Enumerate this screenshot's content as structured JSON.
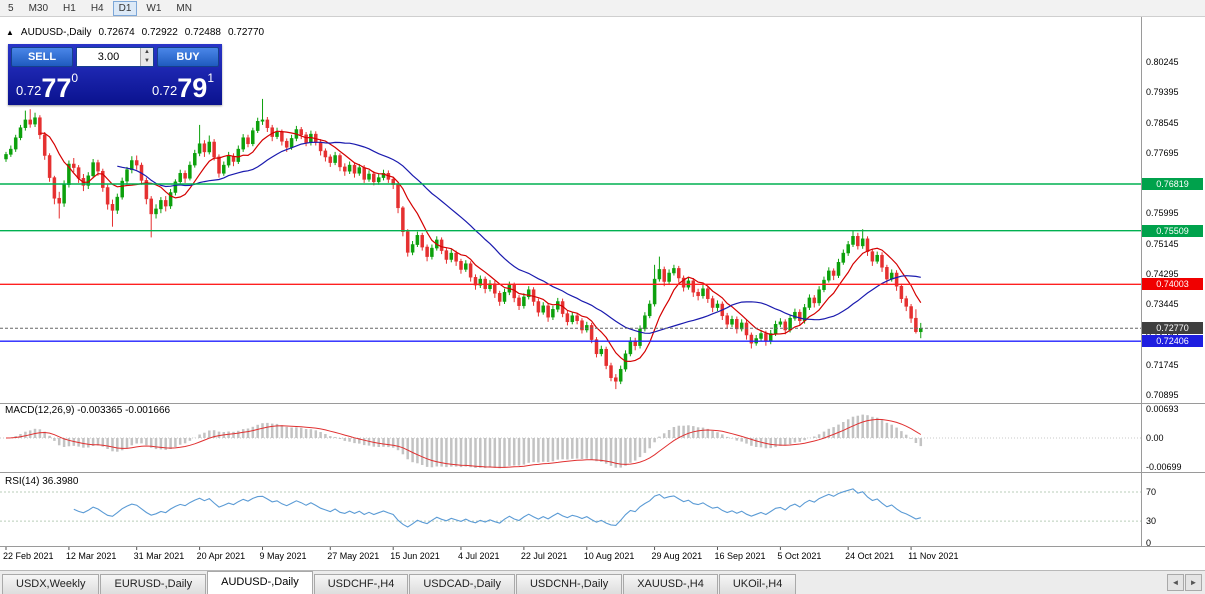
{
  "colors": {
    "up": "#0ca00c",
    "down": "#e53030",
    "ma_fast": "#d40000",
    "ma_slow": "#1a1aae",
    "macd_hist": "#c3c3c3",
    "macd_signal": "#e03030",
    "rsi_line": "#5b9bd5",
    "rsi_levels": "#b9cdb9",
    "current_price_line": "#666666",
    "separator": "#9a9a9a"
  },
  "toolbar": {
    "timeframes": [
      "5",
      "M30",
      "H1",
      "H4",
      "D1",
      "W1",
      "MN"
    ],
    "active": "D1"
  },
  "chart_header": {
    "collapse_icon": "▲",
    "title": "AUDUSD-,Daily",
    "open": "0.72674",
    "high": "0.72922",
    "low": "0.72488",
    "close": "0.72770"
  },
  "trade_panel": {
    "sell_label": "SELL",
    "buy_label": "BUY",
    "volume": "3.00",
    "spin_up": "▲",
    "spin_down": "▼",
    "bid": {
      "prefix": "0.72",
      "pips": "77",
      "point": "0"
    },
    "ask": {
      "prefix": "0.72",
      "pips": "79",
      "point": "1"
    }
  },
  "indicators": {
    "macd": {
      "label": "MACD(12,26,9) -0.003365 -0.001666",
      "ticks": [
        "0.00693",
        "0.00",
        "-0.00699"
      ]
    },
    "rsi": {
      "label": "RSI(14) 36.3980",
      "ticks": [
        "70",
        "30",
        "0"
      ]
    }
  },
  "price_axis": {
    "ticks": [
      "0.80245",
      "0.79395",
      "0.78545",
      "0.77695",
      "0.76845",
      "0.75995",
      "0.75145",
      "0.74295",
      "0.73445",
      "0.72595",
      "0.71745",
      "0.70895"
    ],
    "badges": [
      {
        "value": "0.76819",
        "price": 0.76819,
        "bg": "#00a24c"
      },
      {
        "value": "0.75509",
        "price": 0.75509,
        "bg": "#00a24c"
      },
      {
        "value": "0.74003",
        "price": 0.74003,
        "bg": "#f00000"
      },
      {
        "value": "0.72770",
        "price": 0.7277,
        "bg": "#3f3f3f"
      },
      {
        "value": "0.72406",
        "price": 0.72406,
        "bg": "#1e1ee0"
      }
    ]
  },
  "tabs": {
    "items": [
      "USDX,Weekly",
      "EURUSD-,Daily",
      "AUDUSD-,Daily",
      "USDCHF-,H4",
      "USDCAD-,Daily",
      "USDCNH-,Daily",
      "XAUUSD-,H4",
      "UKOil-,H4"
    ],
    "active_index": 2,
    "scroll_left_icon": "◄",
    "scroll_right_icon": "►"
  },
  "chart_data": {
    "type": "candlestick",
    "symbol": "AUDUSD-",
    "timeframe": "Daily",
    "current_bar": {
      "open": 0.72674,
      "high": 0.72922,
      "low": 0.72488,
      "close": 0.7277
    },
    "current_price": 0.7277,
    "y_range_hint": [
      0.70895,
      0.80245
    ],
    "h_lines": [
      {
        "price": 0.76819,
        "color": "#00b050"
      },
      {
        "price": 0.75509,
        "color": "#00b050"
      },
      {
        "price": 0.74003,
        "color": "#ff2020"
      },
      {
        "price": 0.72406,
        "color": "#2020ff"
      }
    ],
    "x_labels": [
      {
        "text": "22 Feb 2021",
        "bar": 0
      },
      {
        "text": "12 Mar 2021",
        "bar": 13
      },
      {
        "text": "31 Mar 2021",
        "bar": 27
      },
      {
        "text": "20 Apr 2021",
        "bar": 40
      },
      {
        "text": "9 May 2021",
        "bar": 53
      },
      {
        "text": "27 May 2021",
        "bar": 67
      },
      {
        "text": "15 Jun 2021",
        "bar": 80
      },
      {
        "text": "4 Jul 2021",
        "bar": 94
      },
      {
        "text": "22 Jul 2021",
        "bar": 107
      },
      {
        "text": "10 Aug 2021",
        "bar": 120
      },
      {
        "text": "29 Aug 2021",
        "bar": 134
      },
      {
        "text": "16 Sep 2021",
        "bar": 147
      },
      {
        "text": "5 Oct 2021",
        "bar": 160
      },
      {
        "text": "24 Oct 2021",
        "bar": 174
      },
      {
        "text": "11 Nov 2021",
        "bar": 187
      }
    ],
    "candles": [
      [
        0.7752,
        0.7772,
        0.7744,
        0.7765
      ],
      [
        0.7765,
        0.779,
        0.7758,
        0.778
      ],
      [
        0.778,
        0.782,
        0.7772,
        0.7812
      ],
      [
        0.7812,
        0.7848,
        0.7805,
        0.784
      ],
      [
        0.784,
        0.7888,
        0.7832,
        0.7862
      ],
      [
        0.7862,
        0.7892,
        0.784,
        0.785
      ],
      [
        0.785,
        0.7882,
        0.7842,
        0.7868
      ],
      [
        0.7868,
        0.7875,
        0.7808,
        0.782
      ],
      [
        0.782,
        0.7828,
        0.775,
        0.7762
      ],
      [
        0.7762,
        0.7768,
        0.7688,
        0.77
      ],
      [
        0.77,
        0.7705,
        0.7625,
        0.7642
      ],
      [
        0.7642,
        0.766,
        0.7585,
        0.7628
      ],
      [
        0.7628,
        0.7692,
        0.7618,
        0.768
      ],
      [
        0.768,
        0.7748,
        0.7672,
        0.7738
      ],
      [
        0.7738,
        0.7755,
        0.7715,
        0.7728
      ],
      [
        0.7728,
        0.7735,
        0.7685,
        0.7698
      ],
      [
        0.7698,
        0.771,
        0.7662,
        0.7678
      ],
      [
        0.7678,
        0.7715,
        0.7668,
        0.7705
      ],
      [
        0.7705,
        0.7752,
        0.7698,
        0.7742
      ],
      [
        0.7742,
        0.775,
        0.7705,
        0.7718
      ],
      [
        0.7718,
        0.7725,
        0.766,
        0.7672
      ],
      [
        0.7672,
        0.768,
        0.761,
        0.7625
      ],
      [
        0.7625,
        0.7638,
        0.7562,
        0.7608
      ],
      [
        0.7608,
        0.7655,
        0.7598,
        0.7645
      ],
      [
        0.7645,
        0.77,
        0.7638,
        0.769
      ],
      [
        0.769,
        0.773,
        0.768,
        0.7722
      ],
      [
        0.7722,
        0.776,
        0.7712,
        0.7748
      ],
      [
        0.7748,
        0.7762,
        0.7722,
        0.7735
      ],
      [
        0.7735,
        0.7742,
        0.768,
        0.7692
      ],
      [
        0.7692,
        0.77,
        0.7625,
        0.764
      ],
      [
        0.764,
        0.7648,
        0.7532,
        0.7598
      ],
      [
        0.7598,
        0.7625,
        0.7585,
        0.7612
      ],
      [
        0.7612,
        0.7645,
        0.76,
        0.7636
      ],
      [
        0.7636,
        0.7648,
        0.7605,
        0.762
      ],
      [
        0.762,
        0.7668,
        0.7612,
        0.7658
      ],
      [
        0.7658,
        0.7695,
        0.765,
        0.7688
      ],
      [
        0.7688,
        0.7722,
        0.768,
        0.7712
      ],
      [
        0.7712,
        0.772,
        0.7685,
        0.7698
      ],
      [
        0.7698,
        0.7745,
        0.7692,
        0.7735
      ],
      [
        0.7735,
        0.7778,
        0.7728,
        0.7768
      ],
      [
        0.7768,
        0.7848,
        0.776,
        0.7795
      ],
      [
        0.7795,
        0.7805,
        0.7758,
        0.7772
      ],
      [
        0.7772,
        0.7818,
        0.7765,
        0.78
      ],
      [
        0.78,
        0.7808,
        0.7748,
        0.7758
      ],
      [
        0.7758,
        0.7765,
        0.77,
        0.7712
      ],
      [
        0.7712,
        0.7745,
        0.7705,
        0.7735
      ],
      [
        0.7735,
        0.7772,
        0.7728,
        0.776
      ],
      [
        0.776,
        0.7768,
        0.7732,
        0.7745
      ],
      [
        0.7745,
        0.779,
        0.7738,
        0.778
      ],
      [
        0.778,
        0.7822,
        0.7772,
        0.7812
      ],
      [
        0.7812,
        0.782,
        0.7785,
        0.7795
      ],
      [
        0.7795,
        0.784,
        0.7788,
        0.7832
      ],
      [
        0.7832,
        0.7868,
        0.7825,
        0.7858
      ],
      [
        0.7858,
        0.7921,
        0.7848,
        0.7862
      ],
      [
        0.7862,
        0.787,
        0.7828,
        0.784
      ],
      [
        0.784,
        0.7848,
        0.7802,
        0.7815
      ],
      [
        0.7815,
        0.784,
        0.7808,
        0.7828
      ],
      [
        0.7828,
        0.7835,
        0.779,
        0.7802
      ],
      [
        0.7802,
        0.781,
        0.7772,
        0.7785
      ],
      [
        0.7785,
        0.782,
        0.7778,
        0.781
      ],
      [
        0.781,
        0.7845,
        0.7802,
        0.7835
      ],
      [
        0.7835,
        0.7842,
        0.7808,
        0.782
      ],
      [
        0.782,
        0.7828,
        0.7788,
        0.7798
      ],
      [
        0.7798,
        0.7832,
        0.779,
        0.7822
      ],
      [
        0.7822,
        0.783,
        0.779,
        0.78
      ],
      [
        0.78,
        0.7808,
        0.7762,
        0.7775
      ],
      [
        0.7775,
        0.7782,
        0.7745,
        0.7758
      ],
      [
        0.7758,
        0.7765,
        0.773,
        0.7742
      ],
      [
        0.7742,
        0.7772,
        0.7735,
        0.7762
      ],
      [
        0.7762,
        0.7768,
        0.7718,
        0.773
      ],
      [
        0.773,
        0.774,
        0.7705,
        0.7718
      ],
      [
        0.7718,
        0.7745,
        0.771,
        0.7735
      ],
      [
        0.7735,
        0.7742,
        0.77,
        0.7712
      ],
      [
        0.7712,
        0.7738,
        0.7705,
        0.7728
      ],
      [
        0.7728,
        0.7735,
        0.7685,
        0.7695
      ],
      [
        0.7695,
        0.772,
        0.7688,
        0.771
      ],
      [
        0.771,
        0.7718,
        0.7678,
        0.7688
      ],
      [
        0.7688,
        0.771,
        0.768,
        0.77
      ],
      [
        0.77,
        0.7722,
        0.7692,
        0.7712
      ],
      [
        0.7712,
        0.772,
        0.7685,
        0.7695
      ],
      [
        0.7695,
        0.7702,
        0.7668,
        0.768
      ],
      [
        0.768,
        0.7685,
        0.76,
        0.7615
      ],
      [
        0.7615,
        0.762,
        0.7535,
        0.7548
      ],
      [
        0.7548,
        0.7555,
        0.7478,
        0.749
      ],
      [
        0.749,
        0.7522,
        0.7482,
        0.7512
      ],
      [
        0.7512,
        0.7548,
        0.7505,
        0.7538
      ],
      [
        0.7538,
        0.7545,
        0.7495,
        0.7505
      ],
      [
        0.7505,
        0.7512,
        0.7465,
        0.7478
      ],
      [
        0.7478,
        0.7512,
        0.747,
        0.7502
      ],
      [
        0.7502,
        0.7535,
        0.7495,
        0.7525
      ],
      [
        0.7525,
        0.7532,
        0.7485,
        0.7495
      ],
      [
        0.7495,
        0.7502,
        0.7458,
        0.747
      ],
      [
        0.747,
        0.7498,
        0.7462,
        0.7488
      ],
      [
        0.7488,
        0.7495,
        0.7452,
        0.7465
      ],
      [
        0.7465,
        0.7472,
        0.743,
        0.7442
      ],
      [
        0.7442,
        0.7468,
        0.7435,
        0.7458
      ],
      [
        0.7458,
        0.7465,
        0.7408,
        0.742
      ],
      [
        0.742,
        0.7428,
        0.7385,
        0.7398
      ],
      [
        0.7398,
        0.7425,
        0.739,
        0.7415
      ],
      [
        0.7415,
        0.7422,
        0.7375,
        0.7388
      ],
      [
        0.7388,
        0.7412,
        0.738,
        0.7402
      ],
      [
        0.7402,
        0.741,
        0.7362,
        0.7375
      ],
      [
        0.7375,
        0.7382,
        0.734,
        0.7352
      ],
      [
        0.7352,
        0.7388,
        0.7345,
        0.7378
      ],
      [
        0.7378,
        0.7408,
        0.737,
        0.7398
      ],
      [
        0.7398,
        0.7405,
        0.735,
        0.7362
      ],
      [
        0.7362,
        0.737,
        0.7328,
        0.734
      ],
      [
        0.734,
        0.7375,
        0.7332,
        0.7365
      ],
      [
        0.7365,
        0.7395,
        0.7358,
        0.7385
      ],
      [
        0.7385,
        0.7392,
        0.734,
        0.7352
      ],
      [
        0.7352,
        0.736,
        0.731,
        0.7322
      ],
      [
        0.7322,
        0.735,
        0.7315,
        0.734
      ],
      [
        0.734,
        0.7348,
        0.7295,
        0.7308
      ],
      [
        0.7308,
        0.734,
        0.73,
        0.733
      ],
      [
        0.733,
        0.7362,
        0.7322,
        0.7352
      ],
      [
        0.7352,
        0.736,
        0.7308,
        0.7318
      ],
      [
        0.7318,
        0.7325,
        0.7285,
        0.7295
      ],
      [
        0.7295,
        0.7322,
        0.7288,
        0.7312
      ],
      [
        0.7312,
        0.732,
        0.7288,
        0.7298
      ],
      [
        0.7298,
        0.7305,
        0.7262,
        0.7272
      ],
      [
        0.7272,
        0.7295,
        0.7265,
        0.7285
      ],
      [
        0.7285,
        0.7292,
        0.7235,
        0.7245
      ],
      [
        0.7245,
        0.7252,
        0.7195,
        0.7205
      ],
      [
        0.7205,
        0.7228,
        0.7198,
        0.7218
      ],
      [
        0.7218,
        0.7225,
        0.7162,
        0.7172
      ],
      [
        0.7172,
        0.718,
        0.7128,
        0.7138
      ],
      [
        0.7138,
        0.7148,
        0.7106,
        0.7128
      ],
      [
        0.7128,
        0.7172,
        0.712,
        0.7162
      ],
      [
        0.7162,
        0.7215,
        0.7155,
        0.7205
      ],
      [
        0.7205,
        0.7252,
        0.7198,
        0.7242
      ],
      [
        0.7242,
        0.725,
        0.7215,
        0.7228
      ],
      [
        0.7228,
        0.7285,
        0.722,
        0.7275
      ],
      [
        0.7275,
        0.7322,
        0.7268,
        0.7312
      ],
      [
        0.7312,
        0.7355,
        0.7305,
        0.7345
      ],
      [
        0.7345,
        0.7455,
        0.7338,
        0.7415
      ],
      [
        0.7415,
        0.7478,
        0.7408,
        0.7442
      ],
      [
        0.7442,
        0.745,
        0.7395,
        0.7408
      ],
      [
        0.7408,
        0.7442,
        0.74,
        0.7432
      ],
      [
        0.7432,
        0.7455,
        0.7425,
        0.7445
      ],
      [
        0.7445,
        0.7452,
        0.7405,
        0.7418
      ],
      [
        0.7418,
        0.7425,
        0.738,
        0.7392
      ],
      [
        0.7392,
        0.742,
        0.7385,
        0.741
      ],
      [
        0.741,
        0.7418,
        0.7365,
        0.7378
      ],
      [
        0.7378,
        0.7388,
        0.7355,
        0.7368
      ],
      [
        0.7368,
        0.7398,
        0.736,
        0.7388
      ],
      [
        0.7388,
        0.7395,
        0.7348,
        0.736
      ],
      [
        0.736,
        0.7368,
        0.7322,
        0.7335
      ],
      [
        0.7335,
        0.7355,
        0.7325,
        0.7345
      ],
      [
        0.7345,
        0.7352,
        0.73,
        0.7312
      ],
      [
        0.7312,
        0.732,
        0.7275,
        0.7288
      ],
      [
        0.7288,
        0.7312,
        0.728,
        0.7302
      ],
      [
        0.7302,
        0.731,
        0.7262,
        0.7275
      ],
      [
        0.7275,
        0.7302,
        0.7268,
        0.7292
      ],
      [
        0.7292,
        0.73,
        0.7245,
        0.7258
      ],
      [
        0.7258,
        0.7265,
        0.722,
        0.7235
      ],
      [
        0.7235,
        0.7258,
        0.7228,
        0.7248
      ],
      [
        0.7248,
        0.7272,
        0.724,
        0.7262
      ],
      [
        0.7262,
        0.727,
        0.7228,
        0.724
      ],
      [
        0.724,
        0.7272,
        0.7232,
        0.7262
      ],
      [
        0.7262,
        0.7298,
        0.7255,
        0.7288
      ],
      [
        0.7288,
        0.7305,
        0.728,
        0.7295
      ],
      [
        0.7295,
        0.7302,
        0.726,
        0.7272
      ],
      [
        0.7272,
        0.7315,
        0.7265,
        0.7305
      ],
      [
        0.7305,
        0.7332,
        0.7298,
        0.7322
      ],
      [
        0.7322,
        0.733,
        0.7285,
        0.7298
      ],
      [
        0.7298,
        0.7345,
        0.729,
        0.7335
      ],
      [
        0.7335,
        0.7372,
        0.7328,
        0.7362
      ],
      [
        0.7362,
        0.737,
        0.7335,
        0.7348
      ],
      [
        0.7348,
        0.7395,
        0.734,
        0.7385
      ],
      [
        0.7385,
        0.7422,
        0.7378,
        0.7412
      ],
      [
        0.7412,
        0.7448,
        0.7405,
        0.7438
      ],
      [
        0.7438,
        0.7445,
        0.7412,
        0.7425
      ],
      [
        0.7425,
        0.7472,
        0.7418,
        0.7462
      ],
      [
        0.7462,
        0.7498,
        0.7455,
        0.7488
      ],
      [
        0.7488,
        0.7522,
        0.748,
        0.7512
      ],
      [
        0.7512,
        0.7552,
        0.7505,
        0.7535
      ],
      [
        0.7535,
        0.7545,
        0.7498,
        0.7508
      ],
      [
        0.7508,
        0.7555,
        0.75,
        0.7528
      ],
      [
        0.7528,
        0.7535,
        0.748,
        0.7492
      ],
      [
        0.7492,
        0.75,
        0.7452,
        0.7465
      ],
      [
        0.7465,
        0.7492,
        0.7458,
        0.7482
      ],
      [
        0.7482,
        0.749,
        0.7435,
        0.7448
      ],
      [
        0.7448,
        0.7455,
        0.7402,
        0.7415
      ],
      [
        0.7415,
        0.7442,
        0.7408,
        0.7432
      ],
      [
        0.7432,
        0.744,
        0.7382,
        0.7395
      ],
      [
        0.7395,
        0.7402,
        0.7348,
        0.736
      ],
      [
        0.736,
        0.7368,
        0.7325,
        0.7338
      ],
      [
        0.7338,
        0.7345,
        0.7292,
        0.7305
      ],
      [
        0.7305,
        0.733,
        0.7262,
        0.7267
      ],
      [
        0.7267,
        0.7292,
        0.7249,
        0.7277
      ]
    ]
  }
}
